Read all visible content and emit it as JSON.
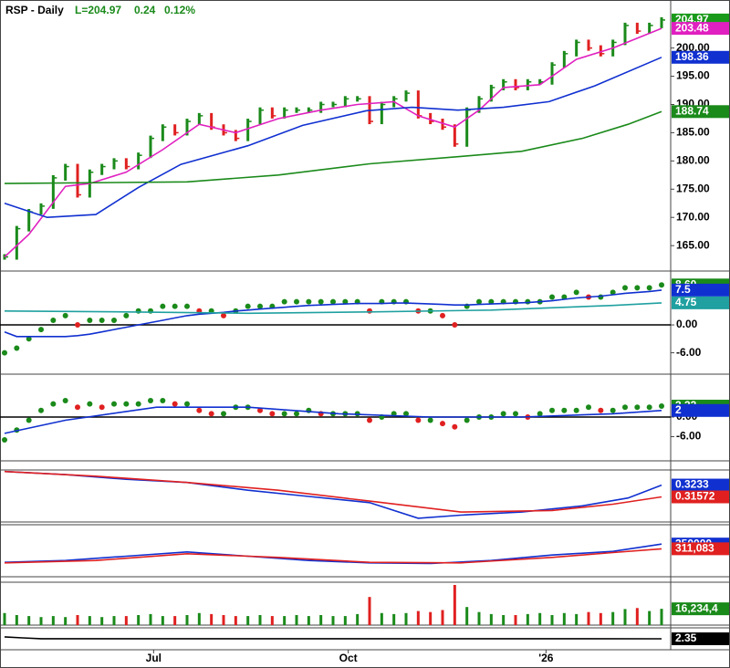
{
  "chart_data": {
    "type": "financial",
    "header": {
      "symbol": "RSP - Daily",
      "last": "L=204.97",
      "change": "0.24",
      "change_pct": "0.12%"
    },
    "x": [
      0,
      4,
      8,
      12,
      16,
      20,
      24,
      28,
      32,
      36,
      40,
      44,
      48,
      52,
      56,
      60,
      64,
      68,
      72,
      76,
      80,
      84,
      88,
      92,
      96,
      100,
      104,
      108,
      112,
      116,
      120,
      124,
      128,
      132,
      136,
      140,
      144,
      148,
      152,
      156,
      160,
      164,
      168,
      172,
      176,
      180,
      184,
      188,
      192,
      196,
      200,
      204,
      208,
      212,
      216
    ],
    "xlim": [
      0,
      219
    ],
    "xticks": [
      {
        "value": 49,
        "label": "Jul"
      },
      {
        "value": 113,
        "label": "Oct"
      },
      {
        "value": 178,
        "label": "'26"
      }
    ],
    "panels": [
      {
        "type": "price",
        "ylim": [
          160.5,
          207.7
        ],
        "yticks": [
          {
            "value": 165,
            "label": "165.00"
          },
          {
            "value": 170,
            "label": "170.00"
          },
          {
            "value": 175,
            "label": "175.00"
          },
          {
            "value": 180,
            "label": "180.00"
          },
          {
            "value": 185,
            "label": "185.00"
          },
          {
            "value": 190,
            "label": "190.00"
          },
          {
            "value": 195,
            "label": "195.00"
          },
          {
            "value": 200,
            "label": "200.00"
          }
        ],
        "series": [
          {
            "style": "bars",
            "up_color": "#1a8a1a",
            "down_color": "#e02020",
            "color": "#1a9a1a",
            "values": [
              163,
              168,
              171,
              172,
              177,
              179,
              174,
              178,
              179,
              180,
              179,
              181,
              184,
              186,
              185,
              187,
              188,
              186,
              185,
              184,
              187,
              189,
              188,
              189,
              189,
              189,
              190,
              190,
              191,
              191,
              187,
              190,
              191,
              192,
              188,
              187,
              186,
              183,
              189,
              191,
              193,
              194,
              193,
              194,
              194,
              197,
              199,
              201,
              200,
              199,
              201,
              204,
              203,
              204,
              204.97
            ]
          },
          {
            "style": "line",
            "color": "#e020c0",
            "x": [
              0,
              8,
              20,
              28,
              40,
              52,
              64,
              76,
              90,
              104,
              116,
              128,
              136,
              148,
              156,
              164,
              176,
              188,
              200,
              216
            ],
            "values": [
              163,
              167,
              175.5,
              176,
              178,
              182,
              186.5,
              185,
              187.5,
              189,
              190,
              190.5,
              188,
              186,
              189,
              193,
              193.5,
              198,
              200,
              203.48
            ]
          },
          {
            "style": "line",
            "color": "#1030d0",
            "x": [
              0,
              14,
              30,
              44,
              58,
              80,
              98,
              119,
              134,
              149,
              164,
              179,
              194,
              216
            ],
            "values": [
              172.5,
              170,
              170.5,
              175.3,
              179.4,
              182.7,
              186.3,
              188.9,
              189.5,
              189,
              189.5,
              190.5,
              193.3,
              198.36
            ]
          },
          {
            "style": "line",
            "color": "#1a8a1a",
            "x": [
              0,
              60,
              90,
              120,
              150,
              170,
              190,
              205,
              216
            ],
            "values": [
              176,
              176.3,
              177.5,
              179.5,
              180.8,
              181.7,
              184,
              186.5,
              188.74
            ]
          }
        ]
      },
      {
        "type": "indicator",
        "ylim": [
          -10.6,
          11.6
        ],
        "zero_line": true,
        "yticks": [
          {
            "value": 0,
            "label": "0.00"
          },
          {
            "value": -6,
            "label": "-6.00"
          }
        ],
        "series": [
          {
            "style": "dots",
            "up_color": "#1a8a1a",
            "down_color": "#e02020",
            "color": "#1a8a1a",
            "last_label": "8.60",
            "values": [
              -6,
              -5,
              -3,
              -1,
              1,
              2,
              0,
              1,
              1,
              1,
              2,
              3,
              3,
              4,
              4,
              4,
              3,
              3,
              2,
              3,
              4,
              4,
              4,
              5,
              5,
              5,
              5,
              5,
              5,
              5,
              3,
              5,
              5,
              5,
              3,
              3,
              2,
              0,
              4,
              5,
              5,
              5,
              5,
              5,
              5,
              6,
              6,
              7,
              6,
              6,
              7,
              8,
              8,
              8,
              8.6
            ]
          },
          {
            "style": "line",
            "color": "#1030d0",
            "values": [
              -1.5,
              -2.5,
              -2.5,
              -2.5,
              -2.5,
              -2.5,
              -2.3,
              -2,
              -1.5,
              -1,
              -0.5,
              0,
              0.5,
              1,
              1.5,
              2,
              2.3,
              2.5,
              2.7,
              3,
              3.2,
              3.4,
              3.6,
              3.8,
              4,
              4.2,
              4.3,
              4.4,
              4.5,
              4.6,
              4.6,
              4.6,
              4.7,
              4.7,
              4.6,
              4.5,
              4.4,
              4.3,
              4.3,
              4.4,
              4.5,
              4.6,
              4.7,
              4.8,
              5,
              5.2,
              5.5,
              5.8,
              6,
              6.2,
              6.5,
              6.8,
              7,
              7.2,
              7.5
            ]
          },
          {
            "style": "line",
            "color": "#20a0a0",
            "x": [
              0,
              40,
              80,
              120,
              160,
              200,
              216
            ],
            "values": [
              3,
              2.8,
              2.5,
              2.8,
              3.2,
              4.2,
              4.75
            ]
          }
        ]
      },
      {
        "type": "indicator",
        "ylim": [
          -13.4,
          13.1
        ],
        "zero_line": true,
        "yticks": [
          {
            "value": 0,
            "label": "0.00"
          },
          {
            "value": -6,
            "label": "-6.00"
          }
        ],
        "series": [
          {
            "style": "dots",
            "up_color": "#1a8a1a",
            "down_color": "#e02020",
            "color": "#1a8a1a",
            "values": [
              -7,
              -4,
              -1,
              2,
              4,
              5,
              3,
              4,
              3,
              4,
              4,
              4,
              5,
              5,
              4,
              4,
              2,
              1,
              1,
              3,
              3,
              2,
              1,
              1,
              1,
              2,
              1,
              1,
              1,
              1,
              -1,
              0,
              1,
              1,
              -1,
              -1,
              -2,
              -3,
              -1,
              0,
              0,
              1,
              1,
              0,
              1,
              2,
              2,
              2,
              3,
              2,
              2,
              3,
              3,
              3,
              3.33
            ]
          },
          {
            "style": "line",
            "color": "#1030d0",
            "x": [
              0,
              20,
              50,
              80,
              110,
              140,
              170,
              200,
              216
            ],
            "values": [
              -5,
              -1,
              3,
              3,
              1,
              0,
              0,
              1,
              2
            ]
          }
        ]
      },
      {
        "type": "line",
        "ylim": [
          0.2996,
          0.333
        ],
        "series": [
          {
            "style": "line",
            "color": "#1030d0",
            "x": [
              0,
              20,
              40,
              60,
              80,
              100,
              120,
              136,
              150,
              170,
              190,
              205,
              216
            ],
            "values": [
              0.332,
              0.33,
              0.327,
              0.325,
              0.32,
              0.316,
              0.312,
              0.302,
              0.304,
              0.306,
              0.31,
              0.315,
              0.3233
            ]
          },
          {
            "style": "line",
            "color": "#e02020",
            "x": [
              0,
              30,
              60,
              90,
              120,
              150,
              180,
              200,
              216
            ],
            "values": [
              0.332,
              0.329,
              0.325,
              0.32,
              0.313,
              0.306,
              0.307,
              0.311,
              0.31572
            ]
          }
        ]
      },
      {
        "type": "line",
        "ylim": [
          81000,
          509000
        ],
        "series": [
          {
            "style": "line",
            "color": "#1030d0",
            "x": [
              0,
              20,
              40,
              60,
              80,
              100,
              120,
              140,
              160,
              180,
              200,
              216
            ],
            "values": [
              200000,
              215000,
              250000,
              285000,
              250000,
              215000,
              195000,
              190000,
              215000,
              260000,
              290000,
              350000
            ]
          },
          {
            "style": "line",
            "color": "#e02020",
            "x": [
              0,
              30,
              60,
              90,
              120,
              150,
              180,
              200,
              216
            ],
            "last_label": "311,083",
            "values": [
              195000,
              215000,
              270000,
              240000,
              200000,
              195000,
              240000,
              280000,
              311083
            ]
          }
        ]
      },
      {
        "type": "volume",
        "ylim": [
          0,
          42700000
        ],
        "series": [
          {
            "style": "volume",
            "up_color": "#1a8a1a",
            "down_color": "#e02020",
            "color": "#1a8a1a",
            "last_label": "16,234,4",
            "values": [
              12000000,
              10000000,
              9000000,
              8000000,
              9000000,
              8000000,
              10000000,
              9000000,
              8000000,
              9000000,
              9000000,
              10000000,
              11000000,
              9000000,
              9000000,
              10000000,
              12000000,
              11000000,
              10000000,
              9000000,
              9000000,
              10000000,
              9000000,
              9000000,
              10000000,
              9000000,
              10000000,
              9000000,
              9000000,
              11000000,
              28000000,
              12000000,
              11000000,
              12000000,
              14000000,
              13000000,
              15000000,
              40000000,
              18000000,
              13000000,
              11000000,
              10000000,
              10000000,
              11000000,
              12000000,
              10000000,
              12000000,
              11000000,
              13000000,
              12000000,
              13000000,
              16000000,
              17000000,
              14000000,
              16234400
            ]
          }
        ]
      },
      {
        "type": "line",
        "ylim": [
          1.5,
          3.2
        ],
        "series": [
          {
            "style": "line",
            "color": "#000000",
            "x": [
              0,
              6,
              12,
              216
            ],
            "values": [
              2.5,
              2.42,
              2.36,
              2.35
            ]
          }
        ]
      }
    ]
  }
}
